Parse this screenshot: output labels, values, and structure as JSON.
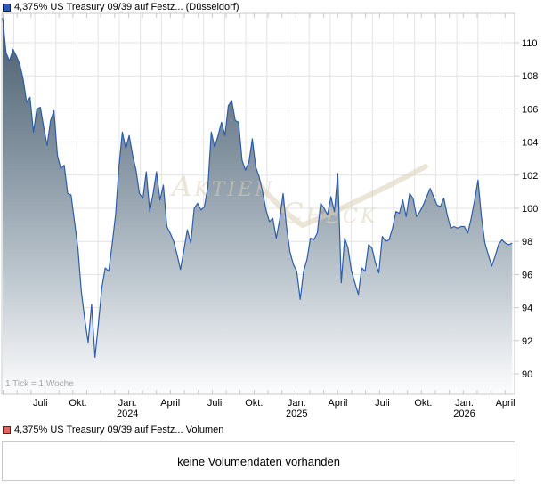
{
  "price_chart": {
    "legend_label": "4,375% US Treasury 09/39 auf Festz... (Düsseldorf)",
    "marker_fill": "#2b59b5",
    "marker_border": "#0a1e52",
    "tick_note": "1 Tick = 1 Woche",
    "watermark": {
      "text_left": "Aktien",
      "text_right": "Check",
      "color": "#dbd0ba"
    }
  },
  "volume_panel": {
    "legend_label": "4,375% US Treasury 09/39 auf Festz... Volumen",
    "marker_fill": "#e06565",
    "marker_border": "#7d1414",
    "message": "keine Volumendaten vorhanden"
  },
  "colors": {
    "grid": "#e3e3e3",
    "border": "#c9c9c9",
    "line": "#2c5cab",
    "fill_top": "#47596a",
    "fill_mid": "#8494a1",
    "fill_low": "#c3ccd3",
    "fill_bottom": "#fdfdfe",
    "axis_text": "#000000",
    "note_text": "#a6a6a6"
  },
  "chart_data": {
    "type": "area",
    "title": "4,375% US Treasury 09/39 auf Festz... (Düsseldorf)",
    "x_unit": "week",
    "tick_note": "1 Tick = 1 Woche",
    "legend_position": "top-left",
    "grid": true,
    "y_ticks": [
      110,
      108,
      106,
      104,
      102,
      100,
      98,
      96,
      94,
      92,
      90
    ],
    "y_range_plot": [
      88.8,
      111.8
    ],
    "x_ticks": [
      {
        "week": 11,
        "label": "Juli"
      },
      {
        "week": 22,
        "label": "Okt."
      },
      {
        "week": 36.5,
        "label": "Jan.",
        "year": "2024"
      },
      {
        "week": 49,
        "label": "April"
      },
      {
        "week": 62,
        "label": "Juli"
      },
      {
        "week": 73.5,
        "label": "Okt."
      },
      {
        "week": 86,
        "label": "Jan.",
        "year": "2025"
      },
      {
        "week": 98,
        "label": "April"
      },
      {
        "week": 111,
        "label": "Juli"
      },
      {
        "week": 123,
        "label": "Okt."
      },
      {
        "week": 135,
        "label": "Jan.",
        "year": "2026"
      },
      {
        "week": 147,
        "label": "April"
      }
    ],
    "series": [
      {
        "name": "4,375% US Treasury 09/39 auf Festz... (Düsseldorf)",
        "color": "#2c5cab",
        "weekly_close": [
          111.5,
          109.4,
          108.9,
          109.6,
          109.2,
          108.7,
          107.8,
          106.4,
          106.7,
          104.6,
          106.0,
          106.1,
          104.9,
          103.8,
          105.3,
          105.9,
          103.2,
          102.4,
          102.6,
          100.9,
          100.8,
          99.2,
          97.6,
          95.0,
          93.3,
          91.9,
          94.2,
          91.0,
          93.0,
          95.2,
          96.4,
          96.2,
          97.8,
          99.6,
          102.5,
          104.6,
          103.6,
          104.4,
          103.2,
          102.3,
          100.9,
          100.6,
          102.2,
          99.8,
          100.9,
          102.2,
          100.5,
          101.4,
          98.9,
          98.5,
          98.0,
          97.2,
          96.3,
          97.5,
          98.7,
          97.9,
          100.0,
          100.3,
          99.9,
          100.1,
          101.3,
          104.6,
          103.7,
          104.4,
          105.2,
          104.4,
          106.2,
          106.5,
          105.3,
          105.2,
          102.9,
          102.3,
          102.8,
          104.2,
          102.5,
          101.9,
          101.0,
          99.9,
          99.2,
          99.4,
          98.2,
          99.3,
          100.9,
          98.9,
          97.4,
          96.6,
          96.2,
          94.5,
          96.2,
          96.9,
          98.2,
          98.1,
          98.5,
          100.3,
          100.0,
          99.6,
          100.7,
          99.8,
          102.1,
          95.5,
          98.2,
          97.6,
          96.2,
          95.5,
          94.8,
          96.4,
          96.2,
          97.8,
          97.6,
          96.7,
          96.1,
          98.3,
          98.0,
          98.1,
          98.8,
          99.8,
          99.7,
          100.5,
          99.5,
          100.9,
          100.6,
          99.5,
          99.8,
          100.2,
          100.7,
          101.2,
          100.7,
          100.2,
          100.1,
          100.6,
          99.6,
          98.8,
          98.9,
          98.8,
          98.9,
          98.9,
          98.5,
          99.4,
          100.5,
          101.7,
          99.5,
          97.9,
          97.2,
          96.5,
          97.1,
          97.8,
          98.1,
          97.9,
          97.8,
          97.9
        ]
      }
    ]
  }
}
